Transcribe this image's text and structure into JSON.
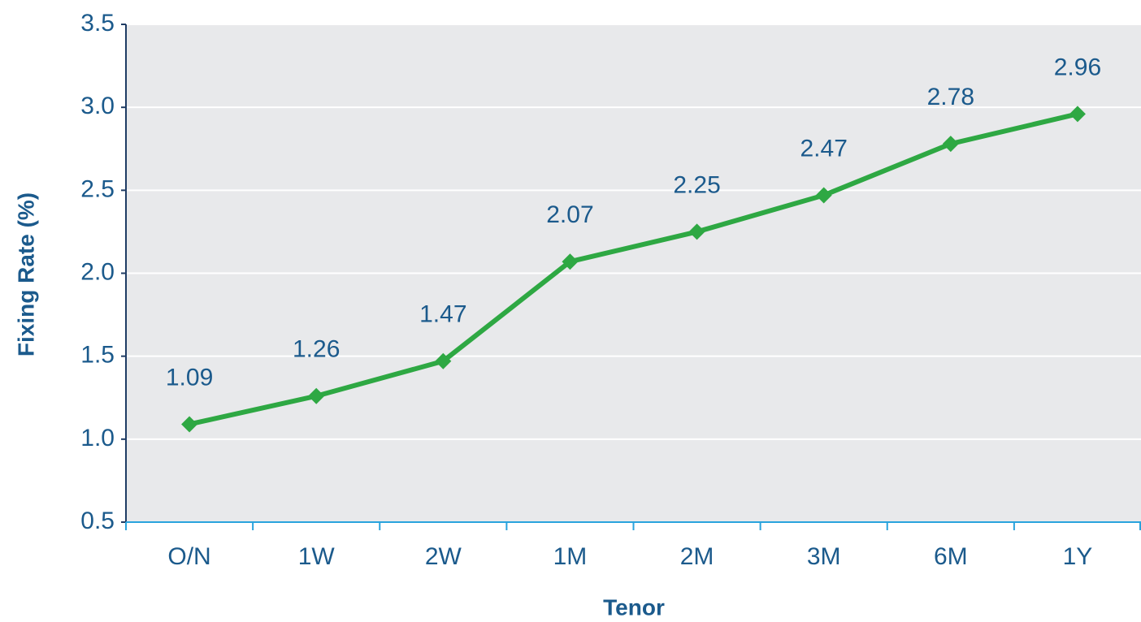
{
  "chart_data": {
    "type": "line",
    "x_label": "Tenor",
    "y_label": "Fixing Rate (%)",
    "categories": [
      "O/N",
      "1W",
      "2W",
      "1M",
      "2M",
      "3M",
      "6M",
      "1Y"
    ],
    "values": [
      1.09,
      1.26,
      1.47,
      2.07,
      2.25,
      2.47,
      2.78,
      2.96
    ],
    "color": "#2ea843",
    "ylim": [
      0.5,
      3.5
    ],
    "yticks": [
      0.5,
      {
        "value": 1,
        "label": "1.0"
      },
      1.5,
      {
        "value": 2,
        "label": "2.0"
      },
      2.5,
      {
        "value": 3,
        "label": "3.0"
      },
      3.5
    ],
    "grid": true
  }
}
